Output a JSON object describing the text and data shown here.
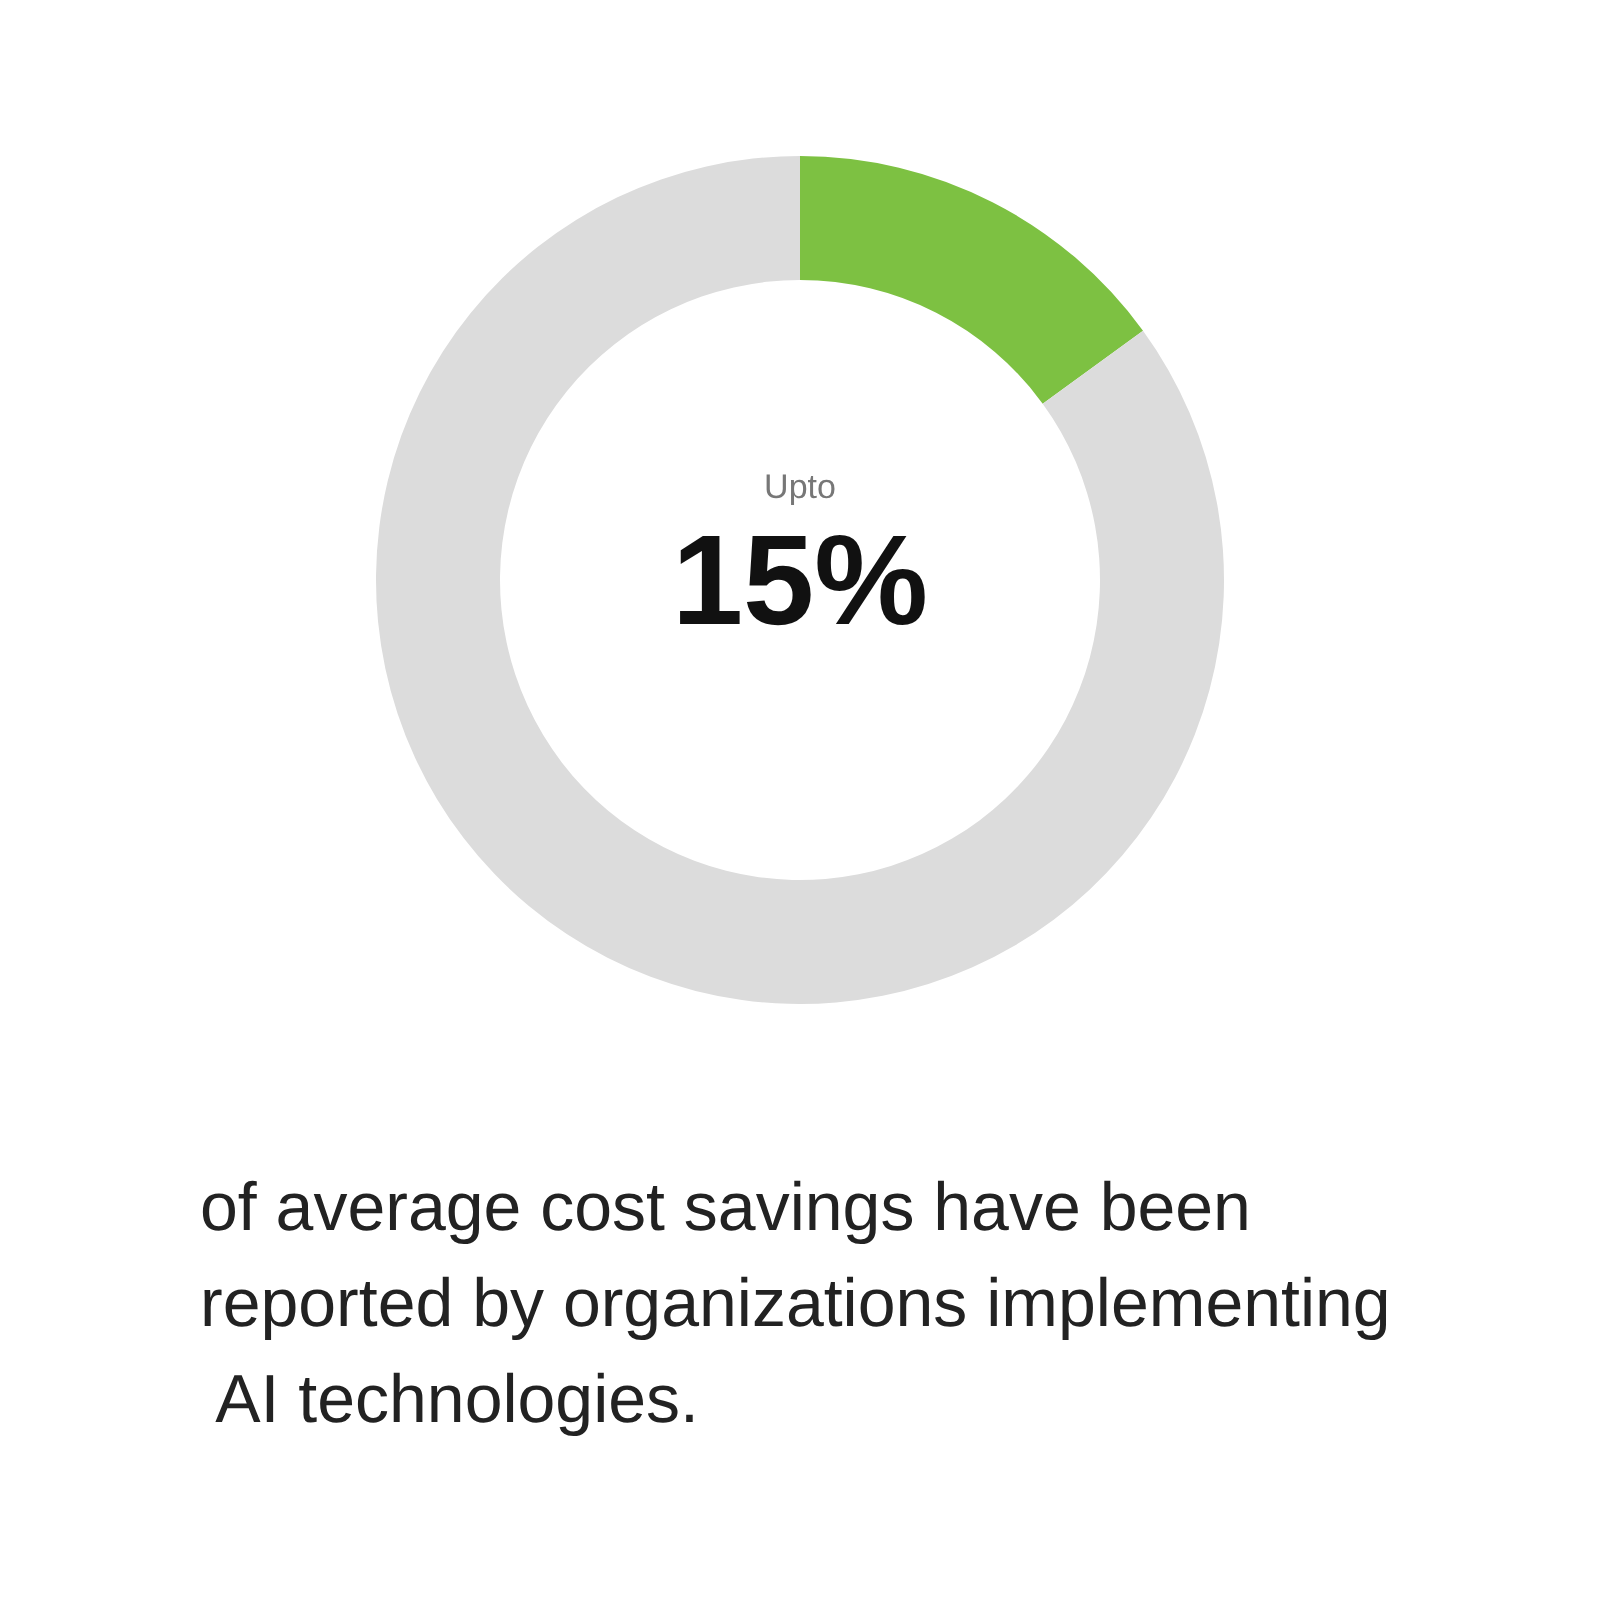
{
  "chart_data": {
    "type": "donut",
    "categories": [
      null,
      null
    ],
    "values": [
      15,
      85
    ],
    "colors": [
      "#7dc142",
      "#dcdcdc"
    ],
    "value_labels": [
      "15%",
      null
    ],
    "annotations": [
      "Upto",
      "of average cost savings have been reported by organizations implementing AI technologies."
    ]
  }
}
